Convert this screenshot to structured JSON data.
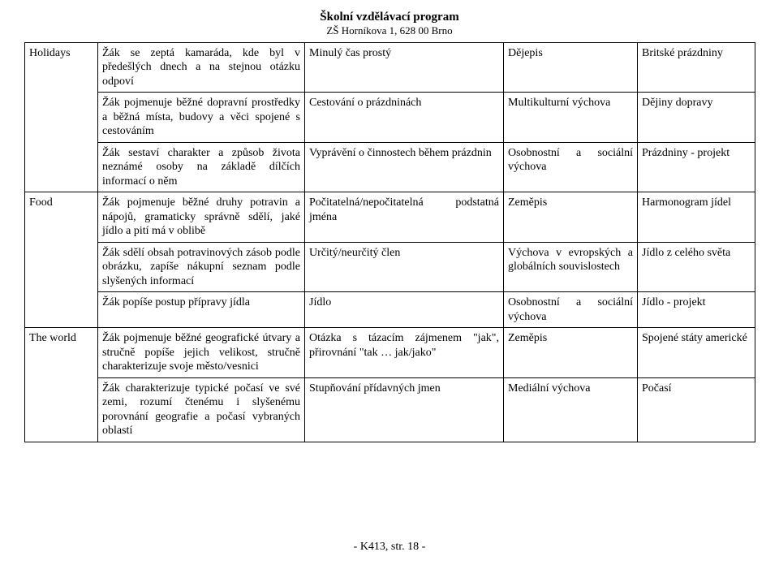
{
  "header": {
    "title": "Školní vzdělávací program",
    "subtitle": "ZŠ Horníkova 1, 628 00 Brno"
  },
  "footer": "- K413, str. 18 -",
  "columns": [
    "c1",
    "c2",
    "c3",
    "c4",
    "c5"
  ],
  "groups": [
    {
      "rows": [
        {
          "c1": "Holidays",
          "c2": "Žák se zeptá kamaráda, kde byl v předešlých dnech a na stejnou otázku odpoví",
          "c3": "Minulý čas prostý",
          "c4": "Dějepis",
          "c5": "Britské prázdniny"
        },
        {
          "c1": "",
          "c2": "Žák pojmenuje běžné dopravní prostředky a běžná místa, budovy a věci spojené s cestováním",
          "c3": "Cestování o prázdninách",
          "c4": "Multikulturní výchova",
          "c5": "Dějiny dopravy"
        },
        {
          "c1": "",
          "c2": "Žák sestaví charakter a způsob života neznámé osoby na základě dílčích informací o něm",
          "c3": "Vyprávění o činnostech během prázdnin",
          "c4": "Osobnostní a sociální výchova",
          "c5": "Prázdniny - projekt"
        }
      ]
    },
    {
      "rows": [
        {
          "c1": "Food",
          "c2": "Žák pojmenuje běžné druhy potravin a nápojů, gramaticky správně sdělí, jaké jídlo a pití má v oblibě",
          "c3": "Počitatelná/nepočitatelná podstatná jména",
          "c4": "Zeměpis",
          "c5": "Harmonogram jídel"
        },
        {
          "c1": "",
          "c2": "Žák sdělí obsah potravinových zásob podle obrázku, zapíše nákupní seznam podle slyšených informací",
          "c3": "Určitý/neurčitý člen",
          "c4": "Výchova v evropských a globálních souvislostech",
          "c5": "Jídlo z celého světa"
        },
        {
          "c1": "",
          "c2": "Žák popíše postup přípravy jídla",
          "c3": "Jídlo",
          "c4": "Osobnostní a sociální výchova",
          "c5": "Jídlo - projekt"
        }
      ]
    },
    {
      "rows": [
        {
          "c1": "The world",
          "c2": "Žák pojmenuje běžné geografické útvary a stručně popíše jejich velikost, stručně charakterizuje svoje město/vesnici",
          "c3": "Otázka s tázacím zájmenem \"jak\", přirovnání \"tak … jak/jako\"",
          "c4": "Zeměpis",
          "c5": "Spojené státy americké"
        },
        {
          "c1": "",
          "c2": "Žák charakterizuje typické počasí ve své zemi, rozumí čtenému i slyšenému porovnání geografie a počasí vybraných oblastí",
          "c3": "Stupňování přídavných jmen",
          "c4": "Mediální výchova",
          "c5": "Počasí"
        }
      ]
    }
  ]
}
